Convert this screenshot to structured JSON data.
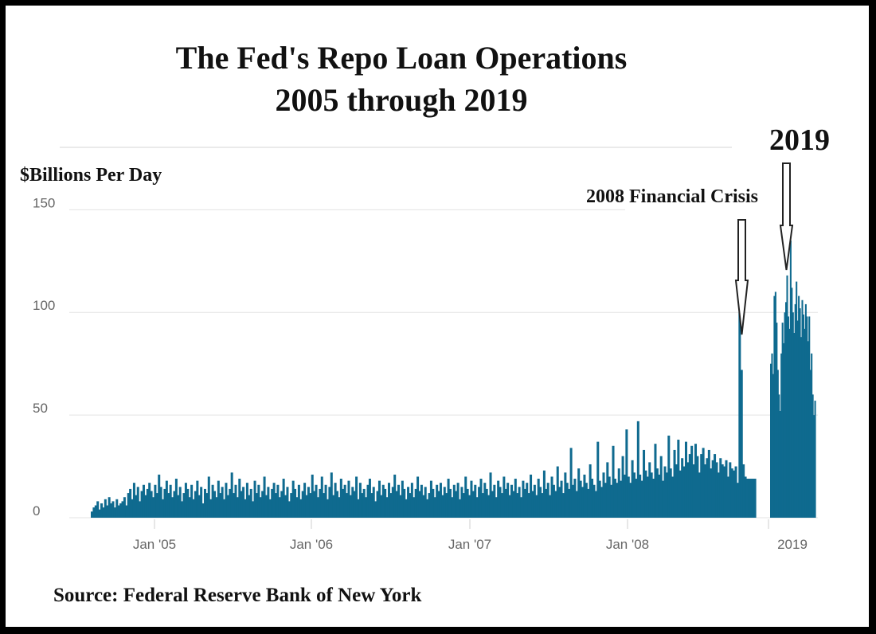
{
  "chart_data": {
    "type": "bar",
    "title": [
      "The Fed's Repo Loan Operations",
      "2005 through 2019"
    ],
    "ylabel": "$Billions Per Day",
    "ylim": [
      0,
      180
    ],
    "y_ticks": [
      0,
      50,
      100,
      150
    ],
    "grid": true,
    "color": "#0f6a8f",
    "x_ticks": [
      "Jan '05",
      "Jan '06",
      "Jan '07",
      "Jan '08",
      "2019"
    ],
    "annotations": [
      {
        "label": "2008 Financial Crisis",
        "points_to": "late 2008 spike (~100)"
      },
      {
        "label": "2019",
        "points_to": "2019 spike (~135)"
      }
    ],
    "source": "Source: Federal Reserve Bank of New York",
    "series": [
      {
        "segment": "2004-2008",
        "x_start": "Aug 2004",
        "x_end": "Dec 2008",
        "values": [
          3,
          5,
          6,
          8,
          4,
          7,
          5,
          9,
          6,
          10,
          7,
          8,
          5,
          9,
          6,
          7,
          8,
          10,
          6,
          12,
          14,
          9,
          17,
          11,
          15,
          8,
          13,
          16,
          11,
          14,
          17,
          13,
          10,
          16,
          12,
          21,
          15,
          9,
          14,
          18,
          12,
          16,
          10,
          13,
          19,
          11,
          15,
          8,
          12,
          17,
          14,
          10,
          16,
          9,
          13,
          18,
          11,
          15,
          7,
          14,
          12,
          20,
          9,
          16,
          13,
          10,
          18,
          12,
          15,
          9,
          17,
          11,
          14,
          22,
          12,
          16,
          10,
          19,
          13,
          15,
          9,
          17,
          11,
          14,
          8,
          18,
          12,
          16,
          10,
          13,
          20,
          11,
          15,
          9,
          14,
          17,
          12,
          16,
          10,
          13,
          19,
          11,
          15,
          8,
          12,
          18,
          14,
          10,
          16,
          9,
          13,
          17,
          11,
          15,
          12,
          21,
          13,
          16,
          10,
          14,
          20,
          12,
          16,
          9,
          15,
          22,
          11,
          17,
          13,
          10,
          19,
          14,
          16,
          12,
          18,
          11,
          15,
          13,
          20,
          9,
          17,
          12,
          14,
          10,
          16,
          19,
          12,
          15,
          8,
          13,
          18,
          11,
          16,
          14,
          10,
          17,
          12,
          15,
          21,
          13,
          16,
          11,
          18,
          14,
          9,
          15,
          12,
          17,
          10,
          14,
          20,
          13,
          16,
          11,
          15,
          9,
          12,
          18,
          14,
          10,
          16,
          13,
          17,
          11,
          15,
          12,
          19,
          14,
          10,
          16,
          13,
          17,
          9,
          15,
          12,
          20,
          14,
          11,
          18,
          13,
          16,
          10,
          15,
          19,
          12,
          17,
          14,
          11,
          22,
          13,
          16,
          10,
          18,
          15,
          12,
          20,
          14,
          17,
          11,
          16,
          13,
          19,
          12,
          15,
          10,
          18,
          14,
          17,
          12,
          21,
          13,
          16,
          11,
          19,
          15,
          12,
          23,
          14,
          17,
          11,
          20,
          16,
          13,
          25,
          15,
          18,
          12,
          22,
          17,
          14,
          34,
          16,
          19,
          13,
          24,
          18,
          15,
          21,
          17,
          14,
          26,
          19,
          16,
          13,
          37,
          18,
          15,
          22,
          17,
          27,
          20,
          16,
          35,
          19,
          17,
          24,
          18,
          30,
          21,
          43,
          20,
          17,
          28,
          22,
          19,
          47,
          21,
          18,
          33,
          23,
          20,
          27,
          22,
          19,
          36,
          24,
          21,
          30,
          18,
          25,
          22,
          40,
          24,
          20,
          33,
          26,
          38,
          23,
          29,
          25,
          37,
          27,
          31,
          35,
          26,
          36,
          30,
          22,
          31,
          34,
          26,
          29,
          33,
          24,
          28,
          31,
          27,
          22,
          29,
          26,
          25,
          28,
          20,
          27,
          24,
          23,
          25,
          17,
          100,
          72,
          26,
          20,
          19,
          19,
          19,
          19,
          19
        ]
      },
      {
        "segment": "2019",
        "x_start": "2019",
        "x_end": "2019",
        "values": [
          75,
          80,
          70,
          108,
          110,
          95,
          72,
          60,
          52,
          80,
          95,
          85,
          100,
          105,
          118,
          98,
          92,
          135,
          112,
          100,
          90,
          104,
          115,
          96,
          108,
          102,
          88,
          106,
          99,
          92,
          104,
          98,
          86,
          98,
          72,
          80,
          60,
          50,
          57
        ]
      }
    ]
  }
}
